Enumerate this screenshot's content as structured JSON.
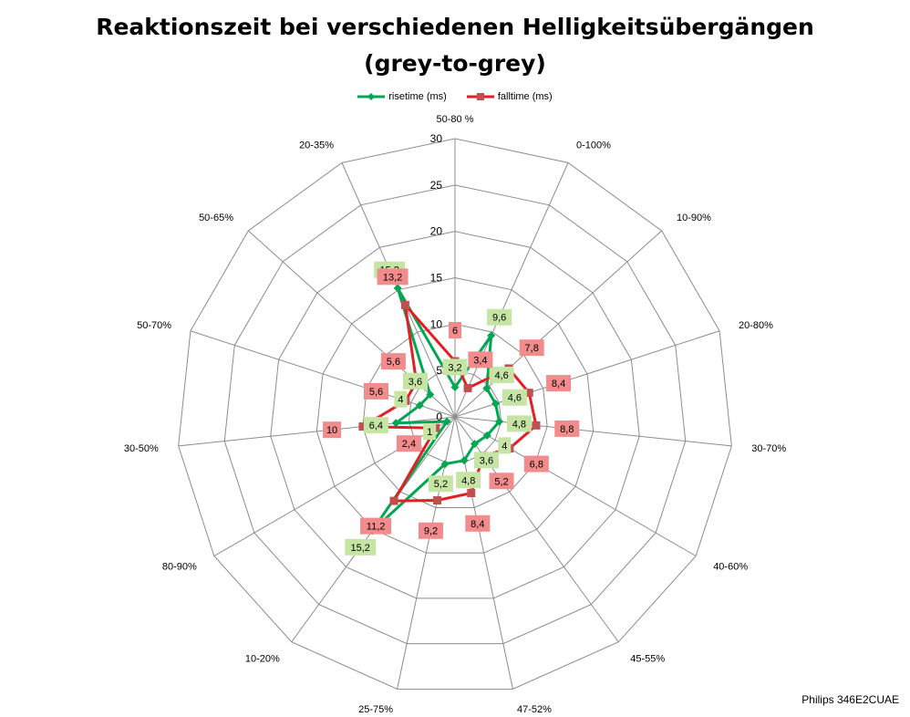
{
  "chart_data": {
    "type": "radar",
    "title": "Reaktionszeit bei verschiedenen Helligkeitsübergängen",
    "subtitle": "(grey-to-grey)",
    "categories": [
      "50-80 %",
      "0-100%",
      "10-90%",
      "20-80%",
      "30-70%",
      "40-60%",
      "45-55%",
      "47-52%",
      "25-75%",
      "10-20%",
      "80-90%",
      "30-50%",
      "50-70%",
      "50-65%",
      "20-35%"
    ],
    "series": [
      {
        "name": "risetime (ms)",
        "color": "#00A651",
        "label_bg": "#C6E5A5",
        "values": [
          3.2,
          9.6,
          4.6,
          4.6,
          4.8,
          4,
          3.6,
          4.8,
          5.2,
          15.2,
          1,
          6.4,
          4,
          3.6,
          15.2
        ]
      },
      {
        "name": "falltime (ms)",
        "color": "#E31E24",
        "label_bg": "#F28B8B",
        "values": [
          6,
          3.4,
          7.8,
          8.4,
          8.8,
          6.8,
          5.2,
          8.4,
          9.2,
          11.2,
          2.4,
          10,
          5.6,
          5.6,
          13.2
        ]
      }
    ],
    "value_labels": {
      "risetime (ms)": [
        "3,2",
        "9,6",
        "4,6",
        "4,6",
        "4,8",
        "4",
        "3,6",
        "4,8",
        "5,2",
        "15,2",
        "1",
        "6,4",
        "4",
        "3,6",
        "15,2"
      ],
      "falltime (ms)": [
        "6",
        "3,4",
        "7,8",
        "8,4",
        "8,8",
        "6,8",
        "5,2",
        "8,4",
        "9,2",
        "11,2",
        "2,4",
        "10",
        "5,6",
        "5,6",
        "13,2"
      ]
    },
    "axis": {
      "min": 0,
      "max": 30,
      "step": 5,
      "tick_labels": [
        "0",
        "5",
        "10",
        "15",
        "20",
        "25",
        "30"
      ]
    },
    "grid": true,
    "legend_position": "top"
  },
  "source_note": "Philips 346E2CUAE"
}
